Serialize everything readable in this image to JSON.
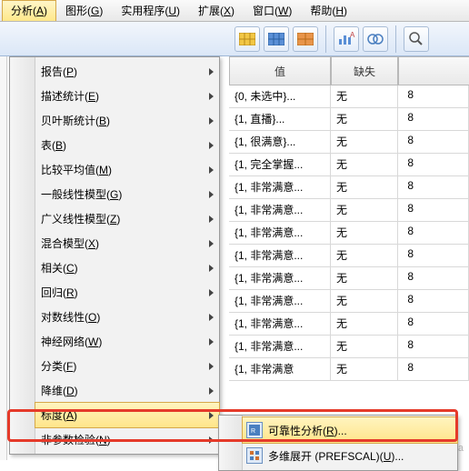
{
  "menubar": [
    {
      "label": "分析",
      "accel": "A",
      "open": true
    },
    {
      "label": "图形",
      "accel": "G"
    },
    {
      "label": "实用程序",
      "accel": "U"
    },
    {
      "label": "扩展",
      "accel": "X"
    },
    {
      "label": "窗口",
      "accel": "W"
    },
    {
      "label": "帮助",
      "accel": "H"
    }
  ],
  "toolbar_icons": [
    "grid-1",
    "grid-2",
    "grid-3",
    "stats",
    "venn",
    "search"
  ],
  "analyze_menu": [
    {
      "label": "报告(P)",
      "sub": true
    },
    {
      "label": "描述统计(E)",
      "sub": true
    },
    {
      "label": "贝叶斯统计(B)",
      "sub": true
    },
    {
      "label": "表(B)",
      "sub": true
    },
    {
      "label": "比较平均值(M)",
      "sub": true
    },
    {
      "label": "一般线性模型(G)",
      "sub": true
    },
    {
      "label": "广义线性模型(Z)",
      "sub": true
    },
    {
      "label": "混合模型(X)",
      "sub": true
    },
    {
      "label": "相关(C)",
      "sub": true
    },
    {
      "label": "回归(R)",
      "sub": true
    },
    {
      "label": "对数线性(O)",
      "sub": true
    },
    {
      "label": "神经网络(W)",
      "sub": true
    },
    {
      "label": "分类(F)",
      "sub": true
    },
    {
      "label": "降维(D)",
      "sub": true
    },
    {
      "label": "标度(A)",
      "sub": true,
      "hl": true
    },
    {
      "label": "非参数检验(N)",
      "sub": true
    }
  ],
  "submenu": [
    {
      "label": "可靠性分析(R)...",
      "hl": true
    },
    {
      "label": "多维展开 (PREFSCAL)(U)..."
    }
  ],
  "table": {
    "headers": [
      "值",
      "缺失",
      ""
    ],
    "rows": [
      [
        "{0, 未选中}...",
        "无",
        "8"
      ],
      [
        "{1, 直播}...",
        "无",
        "8"
      ],
      [
        "{1, 很满意}...",
        "无",
        "8"
      ],
      [
        "{1, 完全掌握...",
        "无",
        "8"
      ],
      [
        "{1, 非常满意...",
        "无",
        "8"
      ],
      [
        "{1, 非常满意...",
        "无",
        "8"
      ],
      [
        "{1, 非常满意...",
        "无",
        "8"
      ],
      [
        "{1, 非常满意...",
        "无",
        "8"
      ],
      [
        "{1, 非常满意...",
        "无",
        "8"
      ],
      [
        "{1, 非常满意...",
        "无",
        "8"
      ],
      [
        "{1, 非常满意...",
        "无",
        "8"
      ],
      [
        "{1, 非常满意...",
        "无",
        "8"
      ],
      [
        "{1, 非常满意",
        "无",
        "8"
      ]
    ]
  },
  "colors": {
    "highlight_border": "#e53a2a",
    "menu_hl_bg_top": "#fff4bf",
    "menu_hl_bg_bot": "#ffe58a"
  },
  "watermark": "知乎 @symba"
}
